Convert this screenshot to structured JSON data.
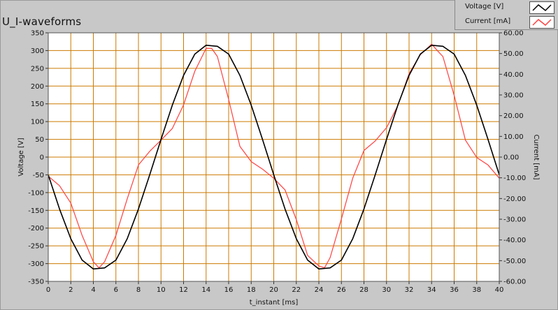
{
  "title": "U_I-waveforms",
  "legend": [
    {
      "label": "Voltage [V]",
      "color": "#000000"
    },
    {
      "label": "Current [mA]",
      "color": "#ff4040"
    }
  ],
  "colors": {
    "grid": "#cc7a00",
    "plot_bg": "#ffffff",
    "voltage": "#000000",
    "current": "#ff4040"
  },
  "chart_data": {
    "type": "line",
    "title": "U_I-waveforms",
    "xlabel": "t_instant [ms]",
    "ylabel_left": "Voltage [V]",
    "ylabel_right": "Current [mA]",
    "xlim": [
      0,
      40
    ],
    "ylim_left": [
      -350,
      350
    ],
    "ylim_right": [
      -60,
      60
    ],
    "x_ticks": [
      0,
      2,
      4,
      6,
      8,
      10,
      12,
      14,
      16,
      18,
      20,
      22,
      24,
      26,
      28,
      30,
      32,
      34,
      36,
      38,
      40
    ],
    "x_tick_labels": [
      "0",
      "2",
      "4",
      "6",
      "8",
      "10",
      "12",
      "14",
      "16",
      "18",
      "20",
      "22",
      "24",
      "26",
      "28",
      "30",
      "32",
      "34",
      "36",
      "38",
      "40"
    ],
    "y_left_ticks": [
      350,
      300,
      250,
      200,
      150,
      100,
      50,
      0,
      -50,
      -100,
      -150,
      -200,
      -250,
      -300,
      -350
    ],
    "y_left_tick_labels": [
      "350",
      "300",
      "250",
      "200",
      "150",
      "100",
      "50",
      "0",
      "-50",
      "-100",
      "-150",
      "-200",
      "-250",
      "-300",
      "-350"
    ],
    "y_right_ticks": [
      60,
      50,
      40,
      30,
      20,
      10,
      0,
      -10,
      -20,
      -30,
      -40,
      -50,
      -60
    ],
    "y_right_tick_labels": [
      "60.00",
      "50.00",
      "40.00",
      "30.00",
      "20.00",
      "10.00",
      "0.00",
      "-10.00",
      "-20.00",
      "-30.00",
      "-40.00",
      "-50.00",
      "-60.00"
    ],
    "grid": true,
    "legend_position": "top-right",
    "series": [
      {
        "name": "Voltage [V]",
        "axis": "left",
        "x": [
          0,
          1,
          2,
          3,
          4,
          5,
          6,
          7,
          8,
          9,
          10,
          11,
          12,
          13,
          14,
          15,
          16,
          17,
          18,
          19,
          20,
          21,
          22,
          23,
          24,
          25,
          26,
          27,
          28,
          29,
          30,
          31,
          32,
          33,
          34,
          35,
          36,
          37,
          38,
          39,
          40
        ],
        "y": [
          -50,
          -146,
          -230,
          -290,
          -315,
          -312,
          -290,
          -230,
          -146,
          -50,
          50,
          146,
          230,
          290,
          315,
          312,
          290,
          230,
          146,
          50,
          -50,
          -146,
          -230,
          -290,
          -315,
          -312,
          -290,
          -230,
          -146,
          -50,
          50,
          146,
          230,
          290,
          315,
          312,
          290,
          230,
          146,
          50,
          -50
        ]
      },
      {
        "name": "Current [mA]",
        "axis": "right",
        "x": [
          0,
          1,
          2,
          3,
          4,
          4.5,
          5,
          6,
          7,
          8,
          9,
          10,
          11,
          12,
          13,
          14,
          14.5,
          15,
          16,
          17,
          18,
          19,
          20,
          21,
          22,
          23,
          24,
          24.5,
          25,
          26,
          27,
          28,
          29,
          30,
          31,
          32,
          33,
          34,
          34.5,
          35,
          36,
          37,
          38,
          39,
          40
        ],
        "y": [
          -9,
          -14,
          -22,
          -38,
          -50,
          -54,
          -50,
          -38,
          -20,
          -4,
          3,
          8,
          14,
          25,
          42,
          52,
          53,
          48,
          28,
          5,
          -2,
          -6,
          -10,
          -16,
          -30,
          -48,
          -52,
          -54,
          -48,
          -30,
          -10,
          3,
          8,
          14,
          25,
          40,
          50,
          54,
          52,
          48,
          30,
          8,
          0,
          -4,
          -10
        ]
      }
    ]
  }
}
